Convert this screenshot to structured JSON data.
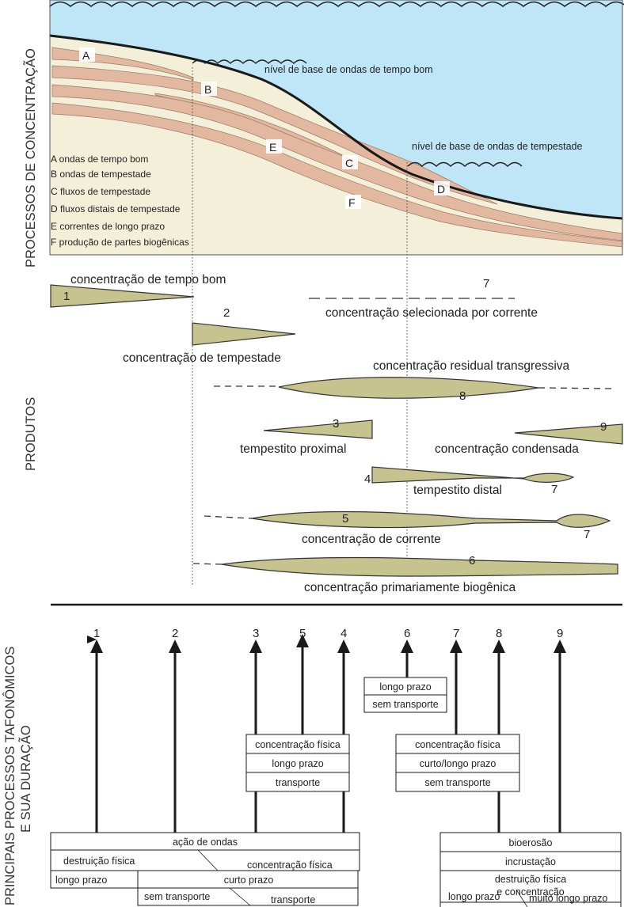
{
  "colors": {
    "water": "#bfe6f7",
    "sediment": "#f3efd9",
    "bed": "#e3b8a0",
    "lens": "#c7c38f",
    "line": "#1a1a1a"
  },
  "sections": {
    "processes": "PROCESSOS DE CONCENTRAÇÃO",
    "products": "PRODUTOS",
    "taphonomic_line1": "PRINCIPAIS PROCESSOS TAFONÔMICOS",
    "taphonomic_line2": "E SUA DURAÇÃO"
  },
  "levels": {
    "fair_weather": "nível de base de ondas de tempo bom",
    "storm": "nível de base de ondas de tempestade"
  },
  "bed_letters": [
    "A",
    "B",
    "C",
    "D",
    "E",
    "F"
  ],
  "legend": [
    "A ondas de tempo bom",
    "B ondas de tempestade",
    "C fluxos de tempestade",
    "D fluxos distais de tempestade",
    "E correntes de longo prazo",
    "F produção de partes biogênicas"
  ],
  "products": [
    {
      "num": "1",
      "label": "concentração de tempo bom"
    },
    {
      "num": "2",
      "label": "concentração de tempestade"
    },
    {
      "num": "3",
      "label": "tempestito proximal"
    },
    {
      "num": "4",
      "label": "tempestito distal",
      "num2": "7"
    },
    {
      "num": "5",
      "label": "concentração de corrente",
      "num2": "7"
    },
    {
      "num": "6",
      "label": "concentração primariamente biogênica"
    },
    {
      "num": "7",
      "label": "concentração selecionada por corrente"
    },
    {
      "num": "8",
      "label": "concentração residual transgressiva"
    },
    {
      "num": "9",
      "label": "concentração condensada"
    }
  ],
  "arrows": [
    "1",
    "2",
    "3",
    "5",
    "4",
    "6",
    "7",
    "8",
    "9"
  ],
  "boxes": {
    "lt_sem": [
      "longo prazo",
      "sem transporte"
    ],
    "phys_transport": [
      "concentração física",
      "longo prazo",
      "transporte"
    ],
    "phys_sem": [
      "concentração física",
      "curto/longo prazo",
      "sem transporte"
    ],
    "waves": {
      "title": "ação de ondas",
      "destruction": "destruição física",
      "concentration": "concentração física",
      "long": "longo prazo",
      "short": "curto prazo",
      "no_transport": "sem transporte",
      "transport": "transporte"
    },
    "bio": {
      "bioerosion": "bioerosão",
      "encrustation": "incrustação",
      "destruction_line1": "destruição física",
      "destruction_line2": "e concentração",
      "long": "longo prazo",
      "very_long": "muito longo prazo"
    }
  }
}
